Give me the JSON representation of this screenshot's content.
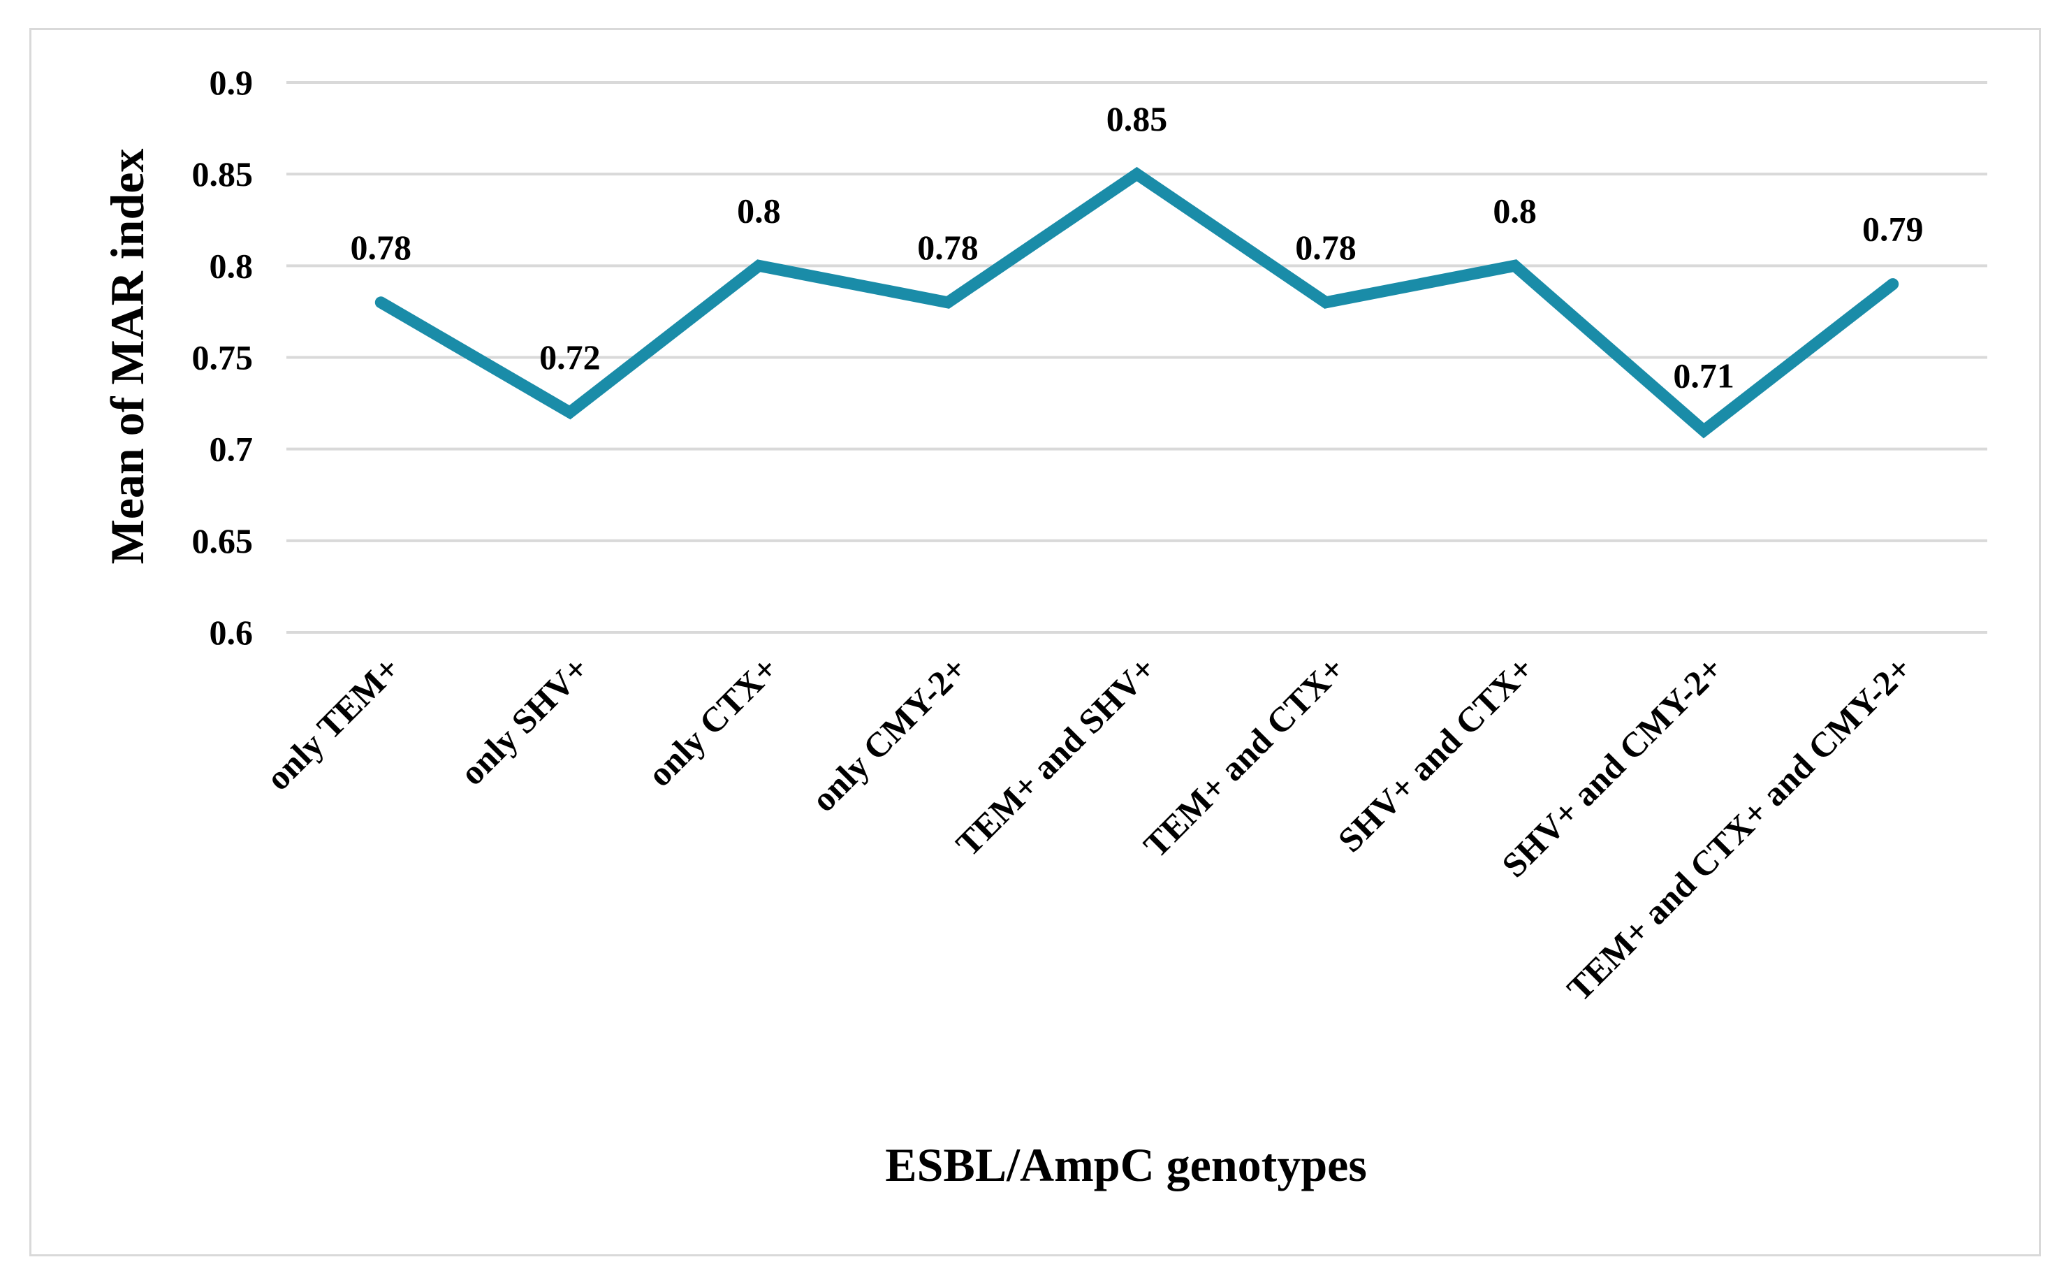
{
  "chart_data": {
    "type": "line",
    "categories": [
      "only TEM+",
      "only SHV+",
      "only CTX+",
      "only CMY-2+",
      "TEM+ and SHV+",
      "TEM+ and CTX+",
      "SHV+ and CTX+",
      "SHV+ and CMY-2+",
      "TEM+ and CTX+ and CMY-2+"
    ],
    "series": [
      {
        "values": [
          0.78,
          0.72,
          0.8,
          0.78,
          0.85,
          0.78,
          0.8,
          0.71,
          0.79
        ]
      }
    ],
    "data_labels": [
      "0.78",
      "0.72",
      "0.8",
      "0.78",
      "0.85",
      "0.78",
      "0.8",
      "0.71",
      "0.79"
    ],
    "y_ticks": [
      "0.6",
      "0.65",
      "0.7",
      "0.75",
      "0.8",
      "0.85",
      "0.9"
    ],
    "xlabel": "ESBL/AmpC genotypes",
    "ylabel": "Mean of MAR index",
    "ylim": [
      0.6,
      0.9
    ],
    "grid": true,
    "legend": "none",
    "line_color": "#1a8ca8",
    "grid_color": "#d9d9d9"
  }
}
